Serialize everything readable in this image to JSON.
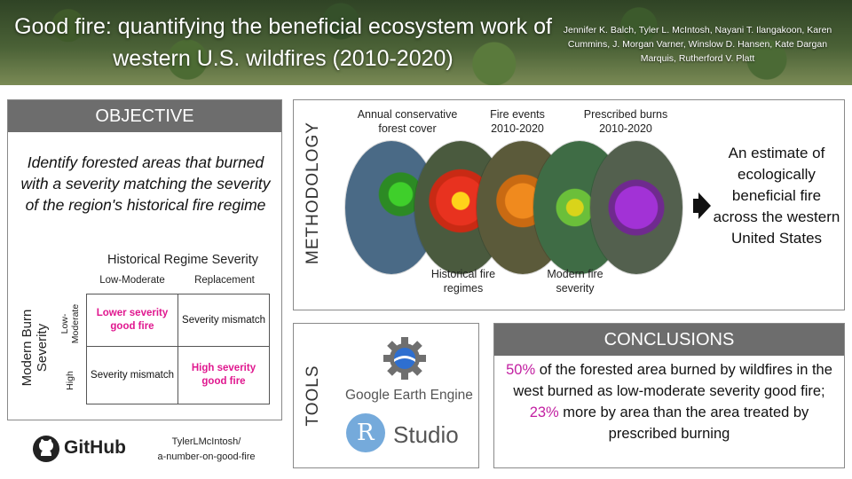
{
  "header": {
    "title": "Good fire: quantifying the beneficial ecosystem work of western U.S. wildfires (2010-2020)",
    "authors": "Jennifer K. Balch, Tyler L. McIntosh, Nayani T. Ilangakoon, Karen Cummins, J. Morgan Varner, Winslow D. Hansen, Kate Dargan Marquis, Rutherford V. Platt"
  },
  "objective": {
    "heading": "OBJECTIVE",
    "text": "Identify forested areas that burned with a severity matching the severity of the region's historical fire regime",
    "matrix": {
      "title": "Historical Regime Severity",
      "col_low": "Low-Moderate",
      "col_high": "Replacement",
      "row_axis": "Modern Burn Severity",
      "row_low": "Low-Moderate",
      "row_high": "High",
      "cell_ll": "Lower severity good fire",
      "cell_lr": "Severity mismatch",
      "cell_hl": "Severity mismatch",
      "cell_hr": "High severity good fire"
    }
  },
  "github": {
    "brand": "GitHub",
    "user": "TylerLMcIntosh/",
    "repo": "a-number-on-good-fire"
  },
  "methodology": {
    "heading": "METHODOLOGY",
    "label_forest": "Annual conservative forest cover",
    "label_events": "Fire events 2010-2020",
    "label_prescribed": "Prescribed burns 2010-2020",
    "label_historical": "Historical fire regimes",
    "label_modern": "Modern fire severity",
    "result": "An estimate of ecologically beneficial fire across the western United States",
    "colors": {
      "forest": "#3fcf2b",
      "historical": "#e8321f",
      "events": "#f08a1e",
      "modern": "#6bbf3a",
      "prescribed": "#a232d6"
    }
  },
  "tools": {
    "heading": "TOOLS",
    "gee": "Google Earth Engine",
    "r_letter": "R",
    "rstudio": "Studio"
  },
  "conclusions": {
    "heading": "CONCLUSIONS",
    "pct1": "50%",
    "text1": " of the forested area burned by wildfires in the west burned as low-moderate severity good fire; ",
    "pct2": "23%",
    "text2": " more by area than the area treated by prescribed burning"
  }
}
